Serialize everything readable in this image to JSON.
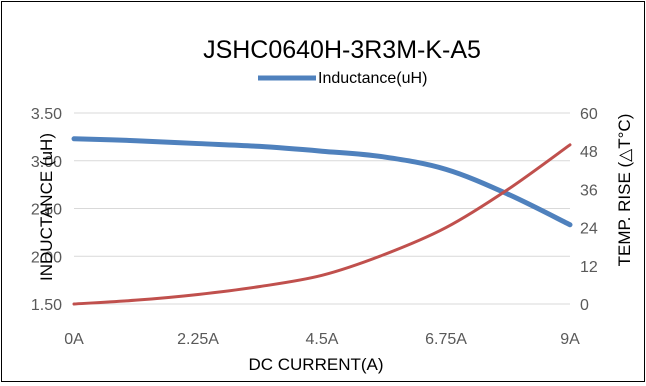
{
  "chart_data": {
    "type": "line",
    "title": "JSHC0640H-3R3M-K-A5",
    "xlabel": "DC  CURRENT(A)",
    "ylabel_left": "INDUCTANCE  (uH)",
    "ylabel_right": "TEMP.  RISE  (△T°C)",
    "legend": "top",
    "grid": true,
    "x_ticks": [
      "0A",
      "2.25A",
      "4.5A",
      "6.75A",
      "9A"
    ],
    "x_tick_values": [
      0,
      2.25,
      4.5,
      6.75,
      9
    ],
    "xlim": [
      0,
      9
    ],
    "ylim_left": [
      1.5,
      3.5
    ],
    "ylim_right": [
      0,
      60
    ],
    "y_ticks_left": [
      "1.50",
      "2.00",
      "2.50",
      "3.00",
      "3.50"
    ],
    "y_tick_values_left": [
      1.5,
      2.0,
      2.5,
      3.0,
      3.5
    ],
    "y_ticks_right": [
      "0",
      "12",
      "24",
      "36",
      "48",
      "60"
    ],
    "y_tick_values_right": [
      0,
      12,
      24,
      36,
      48,
      60
    ],
    "series": [
      {
        "name": "Inductance(uH)",
        "axis": "left",
        "color": "#4f81bd",
        "points": [
          [
            0,
            3.23
          ],
          [
            1.125,
            3.21
          ],
          [
            2.25,
            3.18
          ],
          [
            3.375,
            3.15
          ],
          [
            4.5,
            3.1
          ],
          [
            5.625,
            3.04
          ],
          [
            6.75,
            2.91
          ],
          [
            7.875,
            2.65
          ],
          [
            9,
            2.33
          ]
        ]
      },
      {
        "axis": "right",
        "color": "#c0504d",
        "points": [
          [
            0,
            0
          ],
          [
            1.125,
            1.2
          ],
          [
            2.25,
            3
          ],
          [
            3.375,
            5.5
          ],
          [
            4.5,
            9
          ],
          [
            5.625,
            15.5
          ],
          [
            6.75,
            24
          ],
          [
            7.875,
            36
          ],
          [
            9,
            50
          ]
        ]
      }
    ]
  }
}
